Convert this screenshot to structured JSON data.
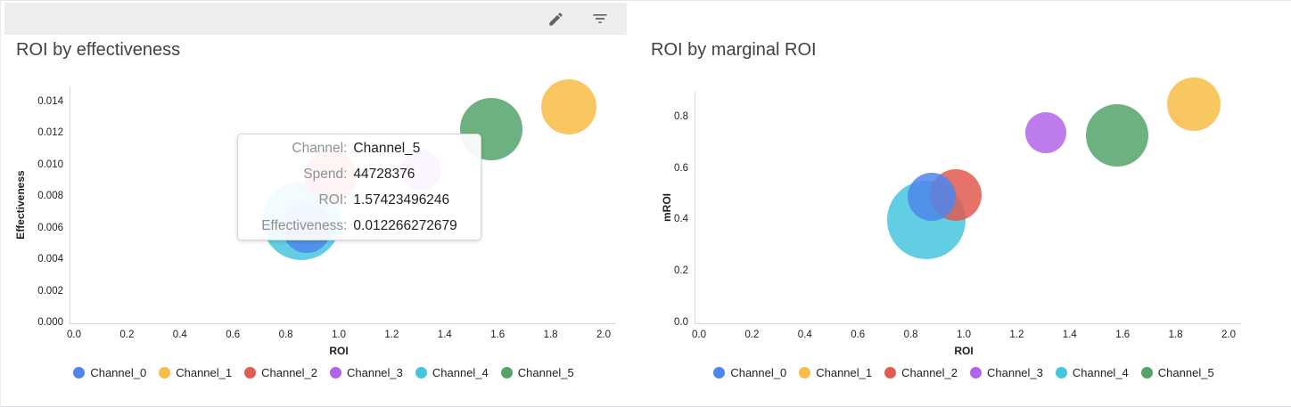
{
  "toolbar": {
    "icons": [
      {
        "name": "edit-pencil-icon"
      },
      {
        "name": "filter-list-icon"
      }
    ],
    "background": "#ededed",
    "icon_color": "#5f6368"
  },
  "channels": [
    {
      "name": "Channel_0",
      "color": "#4e86ec"
    },
    {
      "name": "Channel_1",
      "color": "#f8bd47"
    },
    {
      "name": "Channel_2",
      "color": "#e15b50"
    },
    {
      "name": "Channel_3",
      "color": "#b164e8"
    },
    {
      "name": "Channel_4",
      "color": "#45c6df"
    },
    {
      "name": "Channel_5",
      "color": "#55a36a"
    }
  ],
  "tooltip": {
    "rows": [
      {
        "label": "Channel:",
        "value": "Channel_5"
      },
      {
        "label": "Spend:",
        "value": "44728376"
      },
      {
        "label": "ROI:",
        "value": "1.57423496246"
      },
      {
        "label": "Effectiveness:",
        "value": "0.012266272679"
      }
    ]
  },
  "ui_colors": {
    "axis_line": "#d9d9d9",
    "tick_text": "#1f1f1f",
    "title_text": "#424242",
    "tooltip_label": "#8d9195",
    "tooltip_value": "#202124"
  },
  "chart_data": [
    {
      "type": "bubble",
      "title": "ROI by effectiveness",
      "xlabel": "ROI",
      "ylabel": "Effectiveness",
      "xlim": [
        0,
        2.0
      ],
      "ylim": [
        0,
        0.015
      ],
      "x_ticks": [
        0,
        0.2,
        0.4,
        0.6,
        0.8,
        1.0,
        1.2,
        1.4,
        1.6,
        1.8,
        2.0
      ],
      "x_tick_decimals": 1,
      "y_ticks": [
        0,
        0.002,
        0.004,
        0.006,
        0.008,
        0.01,
        0.012,
        0.014
      ],
      "y_tick_decimals": 3,
      "grid": false,
      "legend_position": "bottom",
      "series": [
        {
          "name": "Channel_0",
          "x": 0.88,
          "y": 0.006,
          "r": 27
        },
        {
          "name": "Channel_1",
          "x": 1.87,
          "y": 0.0137,
          "r": 31
        },
        {
          "name": "Channel_2",
          "x": 0.97,
          "y": 0.0093,
          "r": 29
        },
        {
          "name": "Channel_3",
          "x": 1.31,
          "y": 0.0097,
          "r": 23
        },
        {
          "name": "Channel_4",
          "x": 0.86,
          "y": 0.0065,
          "r": 44
        },
        {
          "name": "Channel_5",
          "x": 1.57423496246,
          "y": 0.012266272679,
          "r": 35
        }
      ],
      "draw_order": [
        "Channel_4",
        "Channel_2",
        "Channel_0",
        "Channel_3",
        "Channel_5",
        "Channel_1"
      ]
    },
    {
      "type": "bubble",
      "title": "ROI by marginal ROI",
      "xlabel": "ROI",
      "ylabel": "mROI",
      "xlim": [
        0,
        2.0
      ],
      "ylim": [
        0,
        0.9
      ],
      "x_ticks": [
        0,
        0.2,
        0.4,
        0.6,
        0.8,
        1.0,
        1.2,
        1.4,
        1.6,
        1.8,
        2.0
      ],
      "x_tick_decimals": 1,
      "y_ticks": [
        0,
        0.2,
        0.4,
        0.6,
        0.8
      ],
      "y_tick_decimals": 1,
      "grid": false,
      "legend_position": "bottom",
      "series": [
        {
          "name": "Channel_0",
          "x": 0.88,
          "y": 0.49,
          "r": 27
        },
        {
          "name": "Channel_1",
          "x": 1.87,
          "y": 0.85,
          "r": 30
        },
        {
          "name": "Channel_2",
          "x": 0.97,
          "y": 0.5,
          "r": 29
        },
        {
          "name": "Channel_3",
          "x": 1.31,
          "y": 0.74,
          "r": 23
        },
        {
          "name": "Channel_4",
          "x": 0.86,
          "y": 0.4,
          "r": 44
        },
        {
          "name": "Channel_5",
          "x": 1.58,
          "y": 0.73,
          "r": 35
        }
      ],
      "draw_order": [
        "Channel_4",
        "Channel_2",
        "Channel_0",
        "Channel_3",
        "Channel_5",
        "Channel_1"
      ]
    }
  ]
}
